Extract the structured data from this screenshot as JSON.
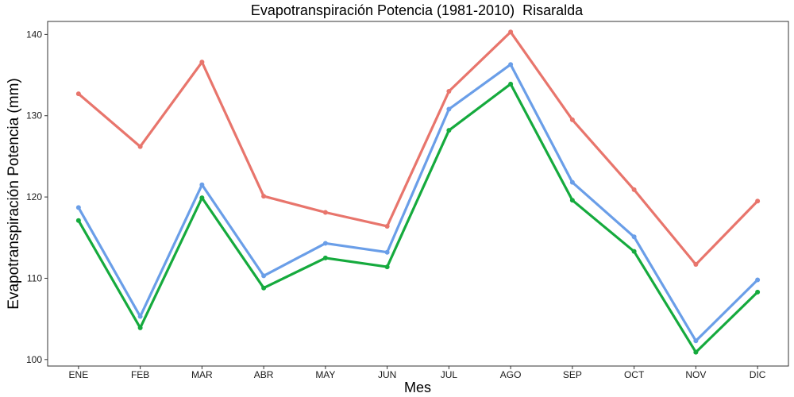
{
  "chart_data": {
    "type": "line",
    "title": "Evapotranspiración Potencia (1981-2010)  Risaralda",
    "xlabel": "Mes",
    "ylabel": "Evapotranspiración Potencia  (mm)",
    "categories": [
      "ENE",
      "FEB",
      "MAR",
      "ABR",
      "MAY",
      "JUN",
      "JUL",
      "AGO",
      "SEP",
      "OCT",
      "NOV",
      "DIC"
    ],
    "ylim": [
      99.2,
      141.6
    ],
    "yticks": [
      100,
      110,
      120,
      130,
      140
    ],
    "grid": false,
    "series": [
      {
        "color": "#e8756c",
        "values": [
          132.7,
          126.2,
          136.6,
          120.1,
          118.1,
          116.4,
          133.0,
          140.3,
          129.5,
          120.9,
          111.7,
          119.5
        ]
      },
      {
        "color": "#6a9ee8",
        "values": [
          118.7,
          105.3,
          121.5,
          110.3,
          114.3,
          113.2,
          130.8,
          136.3,
          121.8,
          115.1,
          102.3,
          109.8
        ]
      },
      {
        "color": "#15aa3d",
        "values": [
          117.1,
          103.9,
          119.9,
          108.8,
          112.5,
          111.4,
          128.2,
          133.9,
          119.6,
          113.3,
          100.9,
          108.3
        ]
      }
    ]
  }
}
